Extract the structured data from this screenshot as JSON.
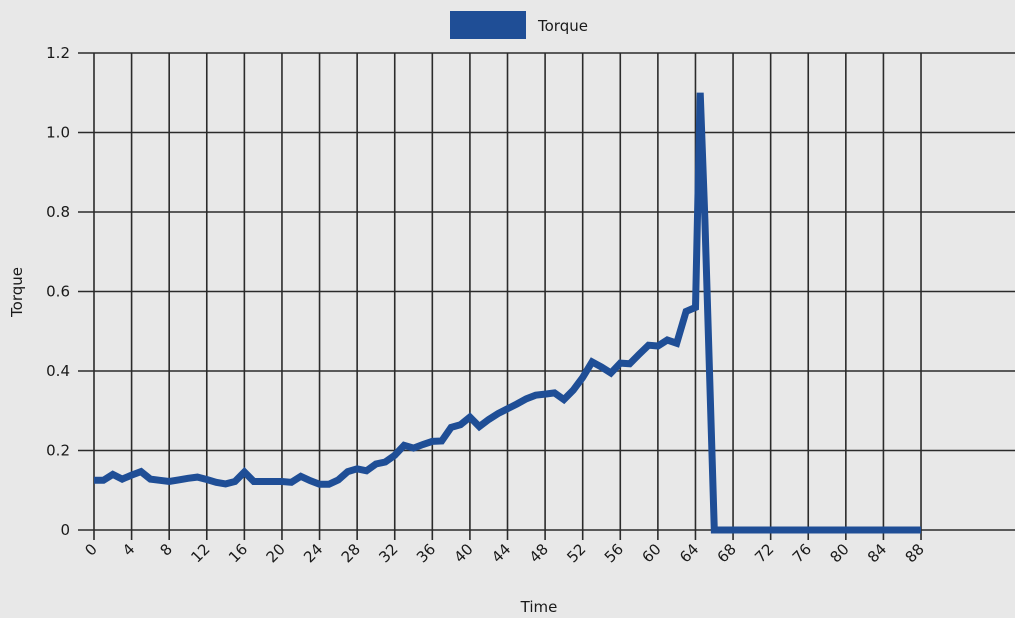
{
  "chart_data": {
    "type": "line",
    "title": "",
    "xlabel": "Time",
    "ylabel": "Torque",
    "xlim": [
      0,
      98
    ],
    "ylim": [
      0,
      1.2
    ],
    "x_ticks": [
      0,
      4,
      8,
      12,
      16,
      20,
      24,
      28,
      32,
      36,
      40,
      44,
      48,
      52,
      56,
      60,
      64,
      68,
      72,
      76,
      80,
      84,
      88
    ],
    "y_ticks": [
      0,
      0.2,
      0.4,
      0.6,
      0.8,
      1.0,
      1.2
    ],
    "y_tick_labels": [
      "0",
      "0.2",
      "0.4",
      "0.6",
      "0.8",
      "1.0",
      "1.2"
    ],
    "grid": true,
    "legend": {
      "position": "top-center",
      "entries": [
        "Torque"
      ]
    },
    "series": [
      {
        "name": "Torque",
        "color": "#1f4e96",
        "x": [
          0,
          1,
          2,
          3,
          4,
          5,
          6,
          7,
          8,
          9,
          10,
          11,
          12,
          13,
          14,
          15,
          16,
          17,
          18,
          19,
          20,
          21,
          22,
          23,
          24,
          25,
          26,
          27,
          28,
          29,
          30,
          31,
          32,
          33,
          34,
          35,
          36,
          37,
          38,
          39,
          40,
          41,
          42,
          43,
          44,
          45,
          46,
          47,
          48,
          49,
          50,
          51,
          52,
          53,
          54,
          55,
          56,
          57,
          58,
          59,
          60,
          61,
          62,
          63,
          64,
          64.5,
          65,
          66,
          68,
          70,
          72,
          74,
          76,
          78,
          80,
          82,
          84,
          86,
          88
        ],
        "values": [
          0.125,
          0.125,
          0.14,
          0.128,
          0.138,
          0.147,
          0.128,
          0.125,
          0.122,
          0.126,
          0.13,
          0.133,
          0.127,
          0.12,
          0.116,
          0.122,
          0.146,
          0.122,
          0.122,
          0.122,
          0.122,
          0.12,
          0.135,
          0.124,
          0.115,
          0.115,
          0.126,
          0.147,
          0.154,
          0.149,
          0.166,
          0.171,
          0.188,
          0.213,
          0.206,
          0.215,
          0.223,
          0.224,
          0.258,
          0.265,
          0.284,
          0.26,
          0.278,
          0.293,
          0.305,
          0.317,
          0.33,
          0.339,
          0.342,
          0.345,
          0.328,
          0.352,
          0.384,
          0.423,
          0.41,
          0.395,
          0.42,
          0.418,
          0.442,
          0.465,
          0.463,
          0.478,
          0.47,
          0.55,
          0.56,
          1.1,
          0.78,
          0,
          0,
          0,
          0,
          0,
          0,
          0,
          0,
          0,
          0,
          0,
          0
        ]
      }
    ]
  }
}
